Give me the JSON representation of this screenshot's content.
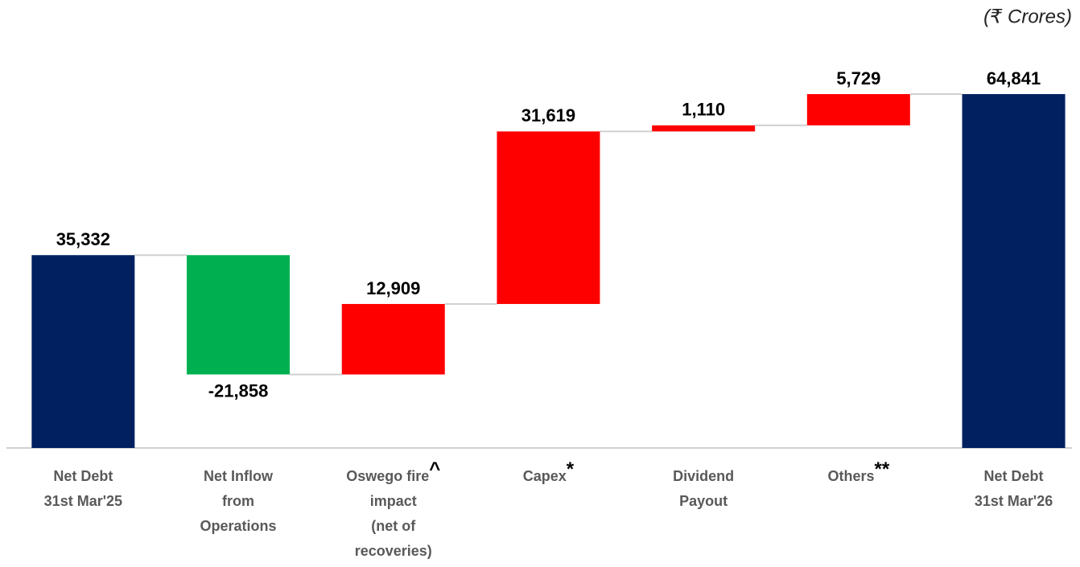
{
  "chart_data": {
    "type": "waterfall",
    "unit_label": "(₹ Crores)",
    "categories": [
      [
        "Net Debt",
        "31st Mar'25"
      ],
      [
        "Net Inflow",
        "from",
        "Operations"
      ],
      [
        "Oswego fire",
        "impact",
        "(net of",
        "recoveries)"
      ],
      [
        "Capex"
      ],
      [
        "Dividend",
        "Payout"
      ],
      [
        "Others"
      ],
      [
        "Net Debt",
        "31st Mar'26"
      ]
    ],
    "category_marks": [
      null,
      null,
      "^",
      "*",
      null,
      "**",
      null
    ],
    "kinds": [
      "total",
      "delta",
      "delta",
      "delta",
      "delta",
      "delta",
      "total"
    ],
    "values": [
      35332,
      -21858,
      12909,
      31619,
      1110,
      5729,
      64841
    ],
    "value_labels": [
      "35,332",
      "-21,858",
      "12,909",
      "31,619",
      "1,110",
      "5,729",
      "64,841"
    ],
    "colors": {
      "total": "#002060",
      "decrease": "#00b050",
      "increase": "#ff0000"
    }
  }
}
